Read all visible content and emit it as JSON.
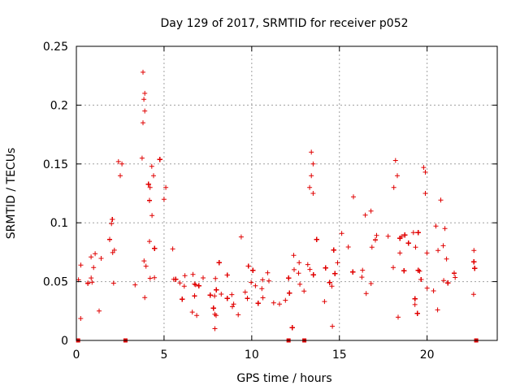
{
  "chart_data": {
    "type": "scatter",
    "title": "Day 129 of 2017, SRMTID for receiver p052",
    "xlabel": "GPS time / hours",
    "ylabel": "SRMTID / TECUs",
    "xlim": [
      0,
      24
    ],
    "ylim": [
      0,
      0.25
    ],
    "grid": true,
    "marker": "+",
    "color": "#e00000",
    "x_ticks": [
      0,
      5,
      10,
      15,
      20
    ],
    "x_tick_labels": [
      "0",
      "5",
      "10",
      "15",
      "20"
    ],
    "y_ticks": [
      0,
      0.05,
      0.1,
      0.15,
      0.2,
      0.25
    ],
    "y_tick_labels": [
      "0",
      "0.05",
      "0.1",
      "0.15",
      "0.2",
      "0.25"
    ],
    "cloud_profile": {
      "description": "approximate binned envelope of the dense point cloud (hour, median, spread)",
      "hours": [
        0.1,
        0.5,
        1.0,
        1.5,
        2.0,
        2.5,
        3.0,
        3.5,
        4.0,
        4.5,
        5.0,
        5.5,
        6.0,
        6.5,
        7.0,
        7.5,
        8.0,
        8.5,
        9.0,
        9.5,
        10.0,
        10.5,
        11.0,
        11.5,
        12.0,
        12.5,
        13.0,
        13.5,
        14.0,
        14.5,
        15.0,
        15.5,
        16.0,
        16.5,
        17.0,
        17.5,
        18.0,
        18.5,
        19.0,
        19.5,
        20.0,
        20.5,
        21.0,
        21.5,
        22.0,
        22.5,
        22.8
      ],
      "median": [
        0.055,
        0.052,
        0.058,
        0.062,
        0.065,
        0.068,
        0.072,
        0.078,
        0.085,
        0.08,
        0.075,
        0.06,
        0.05,
        0.045,
        0.042,
        0.038,
        0.04,
        0.037,
        0.036,
        0.04,
        0.042,
        0.043,
        0.044,
        0.045,
        0.044,
        0.046,
        0.05,
        0.055,
        0.055,
        0.052,
        0.055,
        0.06,
        0.062,
        0.065,
        0.063,
        0.065,
        0.068,
        0.07,
        0.068,
        0.066,
        0.072,
        0.07,
        0.062,
        0.058,
        0.055,
        0.048,
        0.05
      ],
      "spread": [
        0.015,
        0.015,
        0.018,
        0.02,
        0.022,
        0.022,
        0.024,
        0.026,
        0.03,
        0.028,
        0.025,
        0.018,
        0.015,
        0.013,
        0.012,
        0.011,
        0.012,
        0.011,
        0.011,
        0.012,
        0.012,
        0.012,
        0.012,
        0.013,
        0.013,
        0.014,
        0.016,
        0.018,
        0.018,
        0.017,
        0.018,
        0.019,
        0.02,
        0.02,
        0.02,
        0.02,
        0.022,
        0.022,
        0.022,
        0.022,
        0.024,
        0.022,
        0.02,
        0.018,
        0.017,
        0.016,
        0.015
      ]
    },
    "outliers": [
      {
        "x": 3.8,
        "y": 0.228
      },
      {
        "x": 3.9,
        "y": 0.21
      },
      {
        "x": 3.85,
        "y": 0.205
      },
      {
        "x": 3.9,
        "y": 0.195
      },
      {
        "x": 3.8,
        "y": 0.185
      },
      {
        "x": 3.75,
        "y": 0.155
      },
      {
        "x": 4.3,
        "y": 0.148
      },
      {
        "x": 4.4,
        "y": 0.14
      },
      {
        "x": 4.2,
        "y": 0.13
      },
      {
        "x": 2.4,
        "y": 0.152
      },
      {
        "x": 2.6,
        "y": 0.15
      },
      {
        "x": 2.5,
        "y": 0.14
      },
      {
        "x": 5.1,
        "y": 0.13
      },
      {
        "x": 5.0,
        "y": 0.12
      },
      {
        "x": 13.4,
        "y": 0.16
      },
      {
        "x": 13.5,
        "y": 0.15
      },
      {
        "x": 13.4,
        "y": 0.14
      },
      {
        "x": 13.3,
        "y": 0.13
      },
      {
        "x": 13.5,
        "y": 0.125
      },
      {
        "x": 18.2,
        "y": 0.153
      },
      {
        "x": 18.3,
        "y": 0.14
      },
      {
        "x": 18.1,
        "y": 0.13
      },
      {
        "x": 19.8,
        "y": 0.147
      },
      {
        "x": 19.9,
        "y": 0.143
      },
      {
        "x": 19.9,
        "y": 0.125
      },
      {
        "x": 15.8,
        "y": 0.122
      },
      {
        "x": 9.4,
        "y": 0.088
      },
      {
        "x": 16.8,
        "y": 0.11
      },
      {
        "x": 7.9,
        "y": 0.01
      },
      {
        "x": 14.6,
        "y": 0.012
      },
      {
        "x": 20.6,
        "y": 0.026
      }
    ],
    "zero_markers": [
      0.1,
      2.8,
      12.1,
      13.0,
      22.8
    ]
  }
}
